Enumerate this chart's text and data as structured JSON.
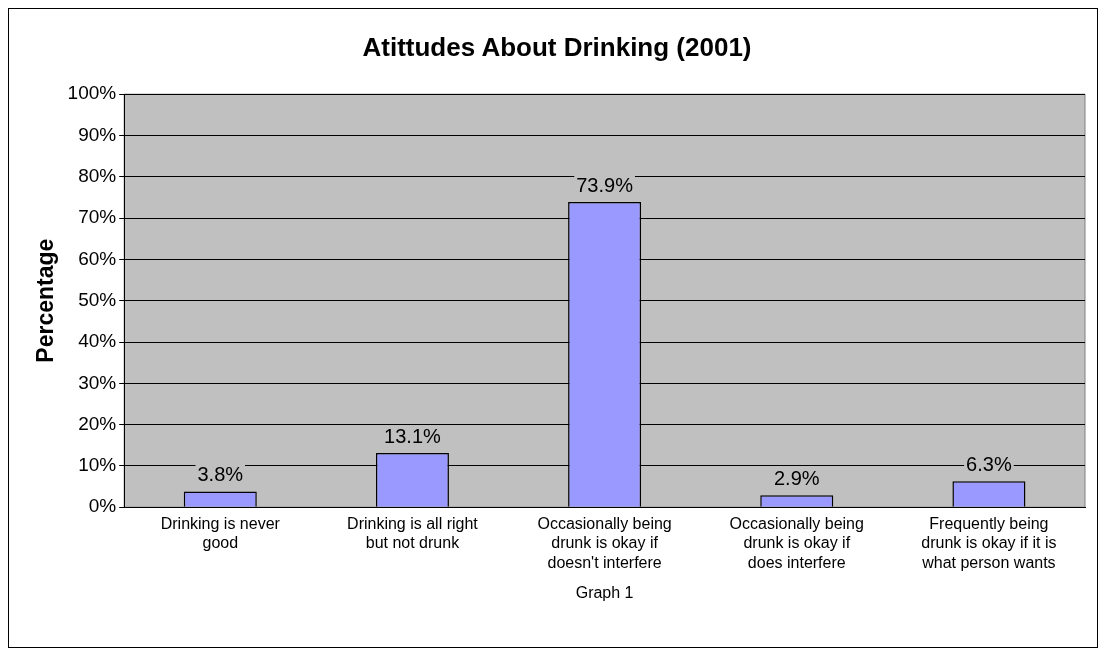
{
  "chart_data": {
    "type": "bar",
    "title": "Atittudes About Drinking (2001)",
    "xlabel": "Graph 1",
    "ylabel": "Percentage",
    "categories": [
      "Drinking is never good",
      "Drinking is all right but not drunk",
      "Occasionally being drunk is okay if doesn't interfere",
      "Occasionally being drunk is okay if does interfere",
      "Frequently being drunk is okay if it is what person wants"
    ],
    "values": [
      3.8,
      13.1,
      73.9,
      2.9,
      6.3
    ],
    "value_labels": [
      "3.8%",
      "13.1%",
      "73.9%",
      "2.9%",
      "6.3%"
    ],
    "color": "#9999ff",
    "ylim": [
      0,
      100
    ],
    "yticks": [
      {
        "value": 0,
        "label": "0%"
      },
      {
        "value": 10,
        "label": "10%"
      },
      {
        "value": 20,
        "label": "20%"
      },
      {
        "value": 30,
        "label": "30%"
      },
      {
        "value": 40,
        "label": "40%"
      },
      {
        "value": 50,
        "label": "50%"
      },
      {
        "value": 60,
        "label": "60%"
      },
      {
        "value": 70,
        "label": "70%"
      },
      {
        "value": 80,
        "label": "80%"
      },
      {
        "value": 90,
        "label": "90%"
      },
      {
        "value": 100,
        "label": "100%"
      }
    ],
    "grid": "y",
    "legend": false
  }
}
